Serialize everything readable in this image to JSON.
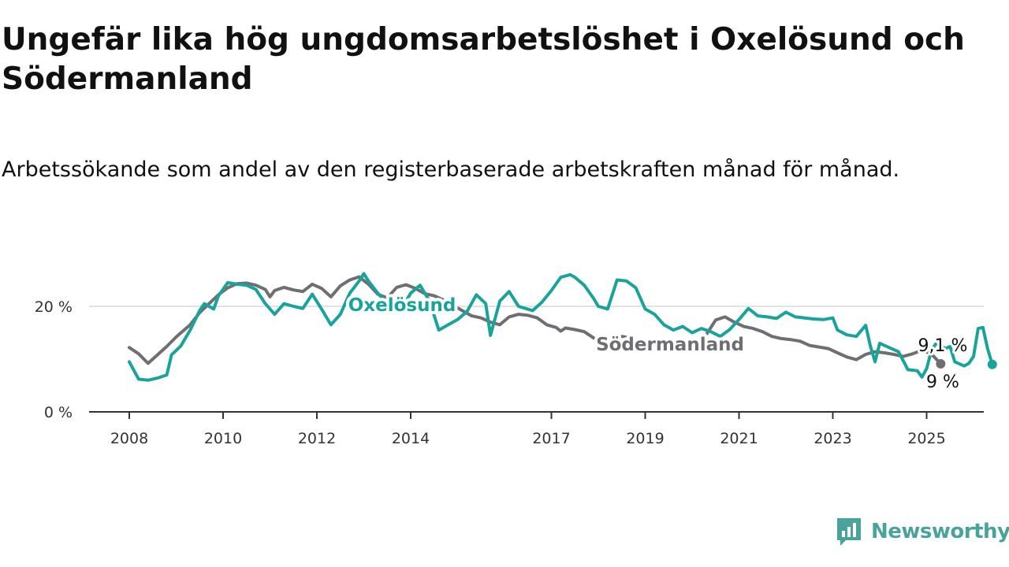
{
  "title": "Ungefär lika hög ungdomsarbetslöshet i Oxelösund och Södermanland",
  "subtitle": "Arbetssökande som andel av den registerbaserade arbetskraften månad för månad.",
  "brand": {
    "name": "Newsworthy",
    "icon": "newsworthy-logo-icon",
    "color": "#4aa39b"
  },
  "chart_data": {
    "type": "line",
    "xlabel": "",
    "ylabel": "",
    "x_ticks": [
      "2008",
      "2010",
      "2012",
      "2014",
      "2017",
      "2019",
      "2021",
      "2023",
      "2025"
    ],
    "y_ticks": [
      {
        "value": 0,
        "label": "0 %"
      },
      {
        "value": 20,
        "label": "20 %"
      }
    ],
    "ylim": [
      0,
      30
    ],
    "xlim": [
      2007.5,
      2026.2
    ],
    "grid": "horizontal",
    "series": [
      {
        "name": "Södermanland",
        "color": "#6e6e73",
        "end_label": "9,1 %",
        "points": [
          [
            2008.0,
            12.2
          ],
          [
            2008.2,
            11.0
          ],
          [
            2008.4,
            9.2
          ],
          [
            2008.6,
            10.8
          ],
          [
            2008.8,
            12.4
          ],
          [
            2009.0,
            14.2
          ],
          [
            2009.3,
            16.5
          ],
          [
            2009.5,
            18.8
          ],
          [
            2009.7,
            20.5
          ],
          [
            2009.9,
            22.2
          ],
          [
            2010.1,
            23.5
          ],
          [
            2010.3,
            24.3
          ],
          [
            2010.5,
            24.4
          ],
          [
            2010.7,
            24.0
          ],
          [
            2010.9,
            23.2
          ],
          [
            2011.0,
            21.8
          ],
          [
            2011.1,
            23.0
          ],
          [
            2011.3,
            23.6
          ],
          [
            2011.5,
            23.1
          ],
          [
            2011.7,
            22.8
          ],
          [
            2011.9,
            24.2
          ],
          [
            2012.1,
            23.4
          ],
          [
            2012.3,
            21.8
          ],
          [
            2012.5,
            23.9
          ],
          [
            2012.7,
            25.0
          ],
          [
            2012.9,
            25.6
          ],
          [
            2013.1,
            24.2
          ],
          [
            2013.3,
            22.3
          ],
          [
            2013.5,
            21.6
          ],
          [
            2013.7,
            23.6
          ],
          [
            2013.9,
            24.1
          ],
          [
            2014.1,
            23.4
          ],
          [
            2014.3,
            22.4
          ],
          [
            2014.5,
            22.0
          ],
          [
            2014.7,
            21.2
          ],
          [
            2014.9,
            20.2
          ],
          [
            2015.1,
            19.2
          ],
          [
            2015.3,
            18.2
          ],
          [
            2015.5,
            17.8
          ],
          [
            2015.7,
            17.0
          ],
          [
            2015.9,
            16.5
          ],
          [
            2016.1,
            18.0
          ],
          [
            2016.3,
            18.5
          ],
          [
            2016.5,
            18.3
          ],
          [
            2016.7,
            17.8
          ],
          [
            2016.9,
            16.5
          ],
          [
            2017.1,
            16.0
          ],
          [
            2017.2,
            15.3
          ],
          [
            2017.3,
            15.9
          ],
          [
            2017.5,
            15.6
          ],
          [
            2017.7,
            15.2
          ],
          [
            2017.9,
            14.0
          ],
          [
            2018.1,
            13.4
          ],
          [
            2018.3,
            13.9
          ],
          [
            2018.5,
            14.3
          ],
          [
            2018.7,
            14.0
          ],
          [
            2018.9,
            13.2
          ],
          [
            2019.1,
            12.5
          ],
          [
            2019.3,
            12.0
          ],
          [
            2019.5,
            12.1
          ],
          [
            2019.7,
            12.3
          ],
          [
            2019.9,
            12.4
          ],
          [
            2020.1,
            13.4
          ],
          [
            2020.3,
            14.6
          ],
          [
            2020.5,
            17.4
          ],
          [
            2020.7,
            18.0
          ],
          [
            2020.9,
            17.0
          ],
          [
            2021.1,
            16.2
          ],
          [
            2021.3,
            15.8
          ],
          [
            2021.5,
            15.2
          ],
          [
            2021.7,
            14.3
          ],
          [
            2021.9,
            13.9
          ],
          [
            2022.1,
            13.7
          ],
          [
            2022.3,
            13.4
          ],
          [
            2022.5,
            12.6
          ],
          [
            2022.7,
            12.3
          ],
          [
            2022.9,
            12.0
          ],
          [
            2023.1,
            11.2
          ],
          [
            2023.3,
            10.4
          ],
          [
            2023.5,
            9.9
          ],
          [
            2023.7,
            10.9
          ],
          [
            2023.9,
            11.4
          ],
          [
            2024.1,
            11.2
          ],
          [
            2024.3,
            10.9
          ],
          [
            2024.5,
            10.5
          ],
          [
            2024.7,
            11.0
          ],
          [
            2024.9,
            11.7
          ],
          [
            2025.1,
            11.0
          ],
          [
            2025.3,
            9.1
          ]
        ]
      },
      {
        "name": "Oxelösund",
        "color": "#1aa39b",
        "end_label": "9 %",
        "points": [
          [
            2008.0,
            9.5
          ],
          [
            2008.2,
            6.2
          ],
          [
            2008.4,
            6.0
          ],
          [
            2008.6,
            6.4
          ],
          [
            2008.8,
            7.0
          ],
          [
            2008.9,
            10.8
          ],
          [
            2009.1,
            12.5
          ],
          [
            2009.3,
            15.5
          ],
          [
            2009.5,
            19.2
          ],
          [
            2009.6,
            20.5
          ],
          [
            2009.8,
            19.5
          ],
          [
            2009.9,
            22.0
          ],
          [
            2010.1,
            24.5
          ],
          [
            2010.3,
            24.2
          ],
          [
            2010.5,
            24.0
          ],
          [
            2010.7,
            23.2
          ],
          [
            2010.9,
            20.5
          ],
          [
            2011.1,
            18.5
          ],
          [
            2011.3,
            20.5
          ],
          [
            2011.5,
            20.0
          ],
          [
            2011.7,
            19.6
          ],
          [
            2011.9,
            22.3
          ],
          [
            2012.1,
            19.5
          ],
          [
            2012.3,
            16.5
          ],
          [
            2012.5,
            18.5
          ],
          [
            2012.7,
            22.5
          ],
          [
            2012.9,
            24.8
          ],
          [
            2013.0,
            26.2
          ],
          [
            2013.1,
            24.8
          ],
          [
            2013.3,
            22.5
          ],
          [
            2013.5,
            20.5
          ],
          [
            2013.7,
            19.5
          ],
          [
            2013.9,
            21.0
          ],
          [
            2014.0,
            22.5
          ],
          [
            2014.2,
            24.0
          ],
          [
            2014.4,
            21.0
          ],
          [
            2014.6,
            15.5
          ],
          [
            2014.8,
            16.5
          ],
          [
            2015.0,
            17.5
          ],
          [
            2015.2,
            19.0
          ],
          [
            2015.4,
            22.2
          ],
          [
            2015.6,
            20.5
          ],
          [
            2015.7,
            14.5
          ],
          [
            2015.9,
            21.0
          ],
          [
            2016.1,
            22.8
          ],
          [
            2016.3,
            20.0
          ],
          [
            2016.6,
            19.2
          ],
          [
            2016.8,
            20.8
          ],
          [
            2017.0,
            23.0
          ],
          [
            2017.2,
            25.5
          ],
          [
            2017.4,
            26.0
          ],
          [
            2017.5,
            25.5
          ],
          [
            2017.7,
            24.0
          ],
          [
            2017.9,
            21.5
          ],
          [
            2018.0,
            20.0
          ],
          [
            2018.2,
            19.5
          ],
          [
            2018.4,
            25.0
          ],
          [
            2018.6,
            24.8
          ],
          [
            2018.8,
            23.5
          ],
          [
            2019.0,
            19.5
          ],
          [
            2019.2,
            18.5
          ],
          [
            2019.4,
            16.5
          ],
          [
            2019.6,
            15.5
          ],
          [
            2019.8,
            16.2
          ],
          [
            2020.0,
            15.0
          ],
          [
            2020.2,
            15.8
          ],
          [
            2020.4,
            15.2
          ],
          [
            2020.6,
            14.3
          ],
          [
            2020.8,
            15.6
          ],
          [
            2021.0,
            17.5
          ],
          [
            2021.2,
            19.6
          ],
          [
            2021.4,
            18.2
          ],
          [
            2021.6,
            18.0
          ],
          [
            2021.8,
            17.7
          ],
          [
            2022.0,
            18.9
          ],
          [
            2022.2,
            18.0
          ],
          [
            2022.4,
            17.8
          ],
          [
            2022.6,
            17.6
          ],
          [
            2022.8,
            17.5
          ],
          [
            2023.0,
            17.8
          ],
          [
            2023.1,
            15.5
          ],
          [
            2023.3,
            14.6
          ],
          [
            2023.5,
            14.3
          ],
          [
            2023.7,
            16.4
          ],
          [
            2023.8,
            12.5
          ],
          [
            2023.9,
            9.5
          ],
          [
            2024.0,
            13.0
          ],
          [
            2024.2,
            12.2
          ],
          [
            2024.4,
            11.4
          ],
          [
            2024.6,
            8.0
          ],
          [
            2024.8,
            7.8
          ],
          [
            2024.9,
            6.6
          ],
          [
            2025.0,
            8.2
          ],
          [
            2025.1,
            11.5
          ],
          [
            2025.2,
            13.0
          ],
          [
            2025.4,
            12.0
          ],
          [
            2025.5,
            12.4
          ],
          [
            2025.6,
            9.5
          ],
          [
            2025.8,
            8.7
          ],
          [
            2025.9,
            9.2
          ],
          [
            2026.0,
            10.5
          ],
          [
            2026.1,
            15.8
          ],
          [
            2026.2,
            16.0
          ],
          [
            2026.3,
            12.0
          ],
          [
            2026.4,
            9.0
          ]
        ]
      }
    ]
  }
}
